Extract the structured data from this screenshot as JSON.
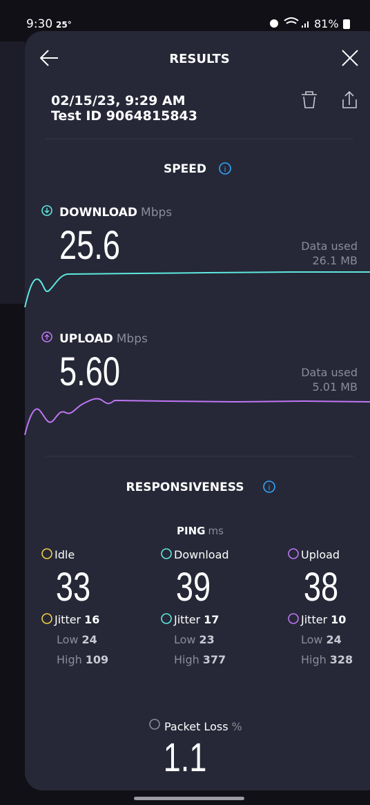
{
  "status_bar": {
    "time": "9:30",
    "temperature": "25°",
    "battery": "81%"
  },
  "header": {
    "title": "RESULTS"
  },
  "test": {
    "datetime": "02/15/23, 9:29 AM",
    "test_id": "Test ID 9064815843"
  },
  "speed": {
    "title": "SPEED",
    "download": {
      "label": "DOWNLOAD",
      "unit": "Mbps",
      "value": "25.6",
      "data_used_label": "Data used",
      "data_used": "26.1 MB"
    },
    "upload": {
      "label": "UPLOAD",
      "unit": "Mbps",
      "value": "5.60",
      "data_used_label": "Data used",
      "data_used": "5.01 MB"
    }
  },
  "responsiveness": {
    "title": "RESPONSIVENESS",
    "ping_label": "PING",
    "ping_unit": "ms",
    "columns": [
      {
        "label": "Idle",
        "value": "33",
        "jitter_label": "Jitter",
        "jitter": "16",
        "low_label": "Low",
        "low": "24",
        "high_label": "High",
        "high": "109"
      },
      {
        "label": "Download",
        "value": "39",
        "jitter_label": "Jitter",
        "jitter": "17",
        "low_label": "Low",
        "low": "23",
        "high_label": "High",
        "high": "377"
      },
      {
        "label": "Upload",
        "value": "38",
        "jitter_label": "Jitter",
        "jitter": "10",
        "low_label": "Low",
        "low": "24",
        "high_label": "High",
        "high": "328"
      }
    ]
  },
  "packet_loss": {
    "label": "Packet Loss",
    "unit": "%",
    "value": "1.1"
  }
}
